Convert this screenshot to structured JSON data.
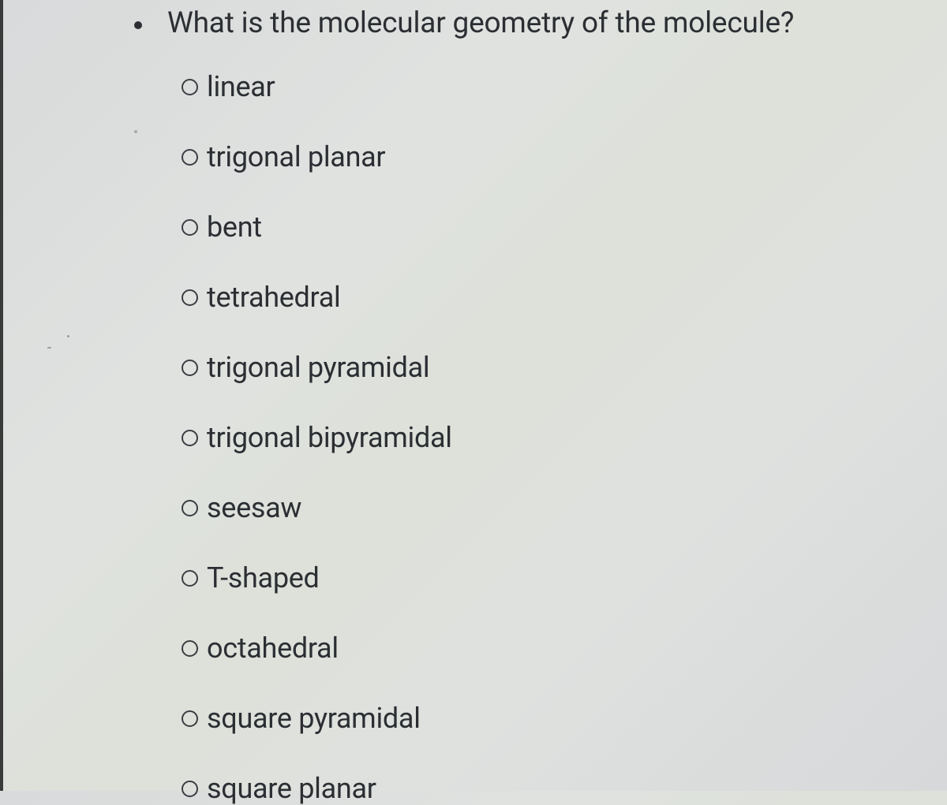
{
  "question": {
    "text": "What is the molecular geometry of the molecule?"
  },
  "options": [
    {
      "label": "linear"
    },
    {
      "label": "trigonal planar"
    },
    {
      "label": "bent"
    },
    {
      "label": "tetrahedral"
    },
    {
      "label": "trigonal pyramidal"
    },
    {
      "label": "trigonal bipyramidal"
    },
    {
      "label": "seesaw"
    },
    {
      "label": "T-shaped"
    },
    {
      "label": "octahedral"
    },
    {
      "label": "square pyramidal"
    },
    {
      "label": "square planar"
    }
  ],
  "colors": {
    "text": "#2b2f33",
    "radio_border": "#3a3e42",
    "background_start": "#d8dadb",
    "background_end": "#d6d8da"
  },
  "typography": {
    "question_fontsize": 37,
    "option_fontsize": 36
  }
}
